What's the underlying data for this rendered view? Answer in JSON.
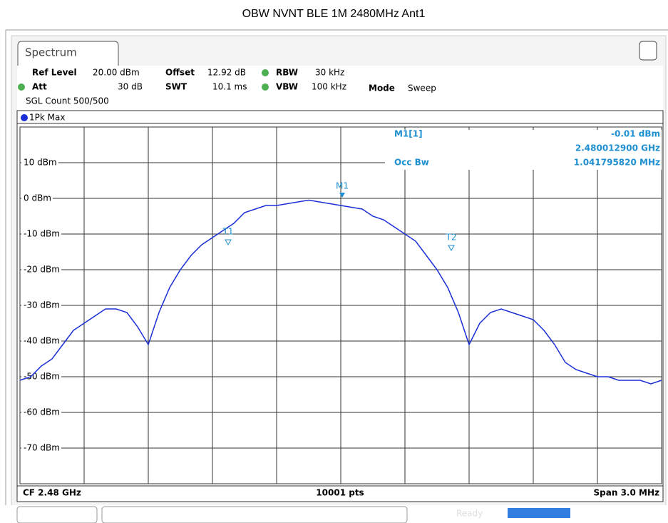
{
  "title": "OBW NVNT BLE 1M 2480MHz Ant1",
  "tab": "Spectrum",
  "settings": {
    "ref_level_label": "Ref Level",
    "ref_level": "20.00 dBm",
    "offset_label": "Offset",
    "offset": "12.92 dB",
    "rbw_label": "RBW",
    "rbw": "30 kHz",
    "att_label": "Att",
    "att": "30 dB",
    "swt_label": "SWT",
    "swt": "10.1 ms",
    "vbw_label": "VBW",
    "vbw": "100 kHz",
    "mode_label": "Mode",
    "mode": "Sweep",
    "count": "SGL Count 500/500"
  },
  "trace_label": "1Pk Max",
  "marker_info": {
    "name": "M1[1]",
    "level": "-0.01 dBm",
    "freq": "2.480012900 GHz",
    "occ_label": "Occ Bw",
    "occ": "1.041795820 MHz"
  },
  "markers": {
    "m1": "M1",
    "t1": "T1",
    "t2": "T2"
  },
  "footer": {
    "cf": "CF 2.48 GHz",
    "pts": "10001 pts",
    "span": "Span 3.0 MHz"
  },
  "status": "Ready",
  "chart_data": {
    "type": "line",
    "categories": [
      null,
      null,
      null,
      null,
      null,
      null,
      null,
      null,
      null,
      null,
      null,
      null,
      null,
      null,
      null,
      null,
      null,
      null,
      null,
      null,
      null,
      null,
      null,
      null,
      null,
      null,
      null,
      null,
      null,
      null,
      null,
      null,
      null,
      null,
      null,
      null,
      null,
      null,
      null,
      null,
      null,
      null,
      null,
      null,
      null,
      null,
      null,
      null,
      null,
      null,
      null,
      null,
      null,
      null,
      null,
      null,
      null,
      null,
      null,
      null,
      null
    ],
    "series": [
      {
        "name": "1Pk Max",
        "color": "#1a2fd6",
        "values": [
          -51,
          -50,
          -47,
          -45,
          -41,
          -37,
          -35,
          -33,
          -31,
          -31,
          -32,
          -36,
          -41,
          -32,
          -25,
          -20,
          -16,
          -13,
          -11,
          -9,
          -7,
          -4,
          -3,
          -2,
          -2,
          -1.5,
          -1,
          -0.5,
          -1,
          -1.5,
          -2,
          -2.5,
          -3,
          -5,
          -6,
          -8,
          -10,
          -12,
          -16,
          -20,
          -25,
          -32,
          -41,
          -35,
          -32,
          -31,
          -32,
          -33,
          -34,
          -37,
          -41,
          -46,
          -48,
          -49,
          -50,
          -50,
          -51,
          -51,
          -51,
          -52,
          -51
        ]
      }
    ],
    "ylim": [
      -80,
      20
    ],
    "yticks": [
      {
        "value": 10,
        "label": "10 dBm"
      },
      {
        "value": 0,
        "label": "0 dBm"
      },
      {
        "value": -10,
        "label": "-10 dBm"
      },
      {
        "value": -20,
        "label": "-20 dBm"
      },
      {
        "value": -30,
        "label": "-30 dBm"
      },
      {
        "value": -40,
        "label": "-40 dBm"
      },
      {
        "value": -50,
        "label": "-50 dBm"
      },
      {
        "value": -60,
        "label": "-60 dBm"
      },
      {
        "value": -70,
        "label": "-70 dBm"
      }
    ],
    "grid": true
  }
}
